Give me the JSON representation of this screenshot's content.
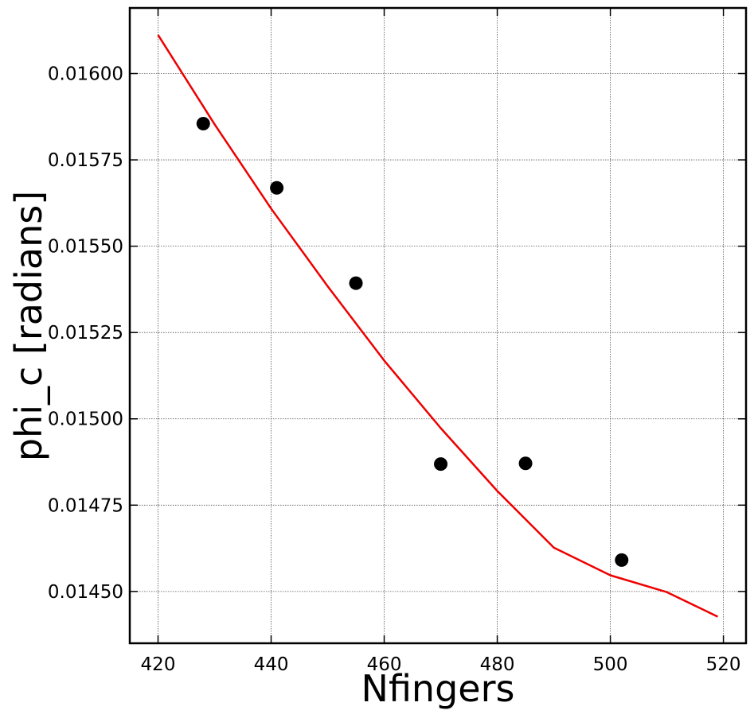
{
  "chart_data": {
    "type": "scatter",
    "title": "",
    "xlabel": "Nfingers",
    "ylabel": "phi_c [radians]",
    "xlim": [
      415,
      524
    ],
    "ylim": [
      0.01435,
      0.01619
    ],
    "grid": true,
    "x_ticks": [
      420,
      440,
      460,
      480,
      500,
      520
    ],
    "x_tick_labels": [
      "420",
      "440",
      "460",
      "480",
      "500",
      "520"
    ],
    "y_ticks": [
      0.0145,
      0.01475,
      0.015,
      0.01525,
      0.0155,
      0.01575,
      0.016
    ],
    "y_tick_labels": [
      "0.01450",
      "0.01475",
      "0.01500",
      "0.01525",
      "0.01550",
      "0.01575",
      "0.01600"
    ],
    "series": [
      {
        "kind": "points",
        "color": "#000000",
        "points": [
          {
            "x": 428,
            "y": 0.015855
          },
          {
            "x": 441,
            "y": 0.015669
          },
          {
            "x": 455,
            "y": 0.015393
          },
          {
            "x": 470,
            "y": 0.014869
          },
          {
            "x": 485,
            "y": 0.014871
          },
          {
            "x": 502,
            "y": 0.014591
          }
        ]
      },
      {
        "kind": "line",
        "color": "#ee0000",
        "points": [
          {
            "x": 420,
            "y": 0.016112
          },
          {
            "x": 430,
            "y": 0.015853
          },
          {
            "x": 440,
            "y": 0.015609
          },
          {
            "x": 450,
            "y": 0.015384
          },
          {
            "x": 460,
            "y": 0.015169
          },
          {
            "x": 470,
            "y": 0.014973
          },
          {
            "x": 480,
            "y": 0.014791
          },
          {
            "x": 490,
            "y": 0.014627
          },
          {
            "x": 500,
            "y": 0.014547
          },
          {
            "x": 510,
            "y": 0.014498
          },
          {
            "x": 519,
            "y": 0.014427
          }
        ]
      }
    ]
  }
}
